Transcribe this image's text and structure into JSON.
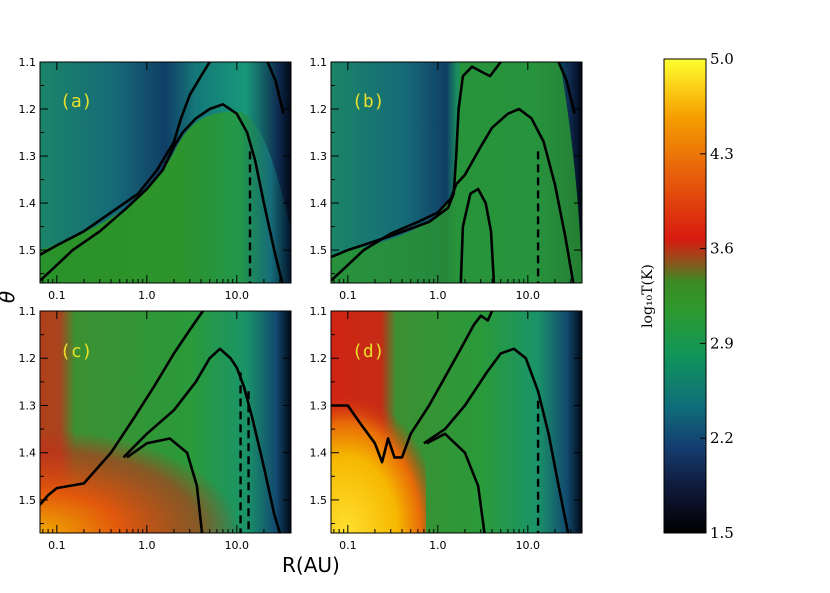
{
  "chart_data": {
    "type": "heatmap",
    "xlabel": "R(AU)",
    "ylabel": "θ",
    "x_scale": "log",
    "xlim": [
      0.065,
      40
    ],
    "ylim": [
      1.1,
      1.57
    ],
    "x_ticks": [
      "0.1",
      "1.0",
      "10.0"
    ],
    "y_ticks": [
      "1.1",
      "1.2",
      "1.3",
      "1.4",
      "1.5"
    ],
    "y_tick_values": [
      1.1,
      1.2,
      1.3,
      1.4,
      1.5
    ],
    "x_tick_values": [
      0.1,
      1.0,
      10.0
    ],
    "colorbar": {
      "title": "log₁₀T(K)",
      "ticks": [
        "5.0",
        "4.3",
        "3.6",
        "2.9",
        "2.2",
        "1.5"
      ],
      "range": [
        1.5,
        5.0
      ],
      "colormap": [
        "#000000",
        "#1a2a6a",
        "#0f6f7a",
        "#1b9a4e",
        "#2e9a2e",
        "#9c4a1c",
        "#d81a10",
        "#ee6a08",
        "#f8b200",
        "#ffff30"
      ]
    },
    "panels": [
      {
        "label": "(a)",
        "contours": [
          [
            [
              0.065,
              1.565
            ],
            [
              0.09,
              1.54
            ],
            [
              0.15,
              1.5
            ],
            [
              0.3,
              1.46
            ],
            [
              0.6,
              1.41
            ],
            [
              1.0,
              1.37
            ],
            [
              1.5,
              1.33
            ],
            [
              2.0,
              1.28
            ],
            [
              2.5,
              1.25
            ],
            [
              3.5,
              1.22
            ],
            [
              5.0,
              1.2
            ],
            [
              7.0,
              1.19
            ],
            [
              10.0,
              1.21
            ],
            [
              13.0,
              1.25
            ],
            [
              16.0,
              1.31
            ],
            [
              20.0,
              1.4
            ],
            [
              26.0,
              1.5
            ],
            [
              32.0,
              1.57
            ]
          ],
          [
            [
              0.065,
              1.51
            ],
            [
              0.1,
              1.49
            ],
            [
              0.2,
              1.46
            ],
            [
              0.4,
              1.42
            ],
            [
              0.8,
              1.38
            ],
            [
              1.3,
              1.33
            ],
            [
              2.0,
              1.27
            ],
            [
              2.4,
              1.22
            ],
            [
              3.0,
              1.17
            ],
            [
              4.0,
              1.13
            ],
            [
              5.0,
              1.1
            ]
          ],
          [
            [
              22.0,
              1.1
            ],
            [
              27.0,
              1.14
            ],
            [
              33.0,
              1.21
            ]
          ]
        ],
        "dashed": [
          [
            14.0,
            1.29
          ],
          [
            14.0,
            1.57
          ]
        ]
      },
      {
        "label": "(b)",
        "contours": [
          [
            [
              0.065,
              1.565
            ],
            [
              0.09,
              1.54
            ],
            [
              0.15,
              1.5
            ],
            [
              0.3,
              1.465
            ],
            [
              0.6,
              1.44
            ],
            [
              1.0,
              1.42
            ],
            [
              1.4,
              1.39
            ],
            [
              1.6,
              1.36
            ],
            [
              2.0,
              1.34
            ],
            [
              3.0,
              1.28
            ],
            [
              4.0,
              1.24
            ],
            [
              6.0,
              1.21
            ],
            [
              8.0,
              1.2
            ],
            [
              11.0,
              1.22
            ],
            [
              15.0,
              1.27
            ],
            [
              20.0,
              1.36
            ],
            [
              26.0,
              1.47
            ],
            [
              32.0,
              1.57
            ]
          ],
          [
            [
              0.065,
              1.515
            ],
            [
              0.1,
              1.5
            ],
            [
              0.3,
              1.47
            ],
            [
              0.8,
              1.44
            ],
            [
              1.3,
              1.41
            ],
            [
              1.5,
              1.38
            ],
            [
              1.6,
              1.3
            ],
            [
              1.7,
              1.2
            ],
            [
              1.9,
              1.13
            ],
            [
              2.4,
              1.11
            ],
            [
              3.0,
              1.12
            ],
            [
              3.8,
              1.13
            ],
            [
              5.0,
              1.1
            ]
          ],
          [
            [
              1.8,
              1.57
            ],
            [
              1.9,
              1.45
            ],
            [
              2.3,
              1.38
            ],
            [
              2.8,
              1.37
            ],
            [
              3.4,
              1.4
            ],
            [
              3.9,
              1.46
            ],
            [
              4.2,
              1.57
            ]
          ],
          [
            [
              22.0,
              1.1
            ],
            [
              27.0,
              1.14
            ],
            [
              33.0,
              1.21
            ]
          ]
        ],
        "dashed": [
          [
            13.0,
            1.29
          ],
          [
            13.0,
            1.57
          ]
        ]
      },
      {
        "label": "(c)",
        "contours": [
          [
            [
              0.065,
              1.51
            ],
            [
              0.08,
              1.49
            ],
            [
              0.1,
              1.475
            ],
            [
              0.2,
              1.465
            ],
            [
              0.4,
              1.4
            ],
            [
              0.7,
              1.33
            ],
            [
              1.2,
              1.26
            ],
            [
              2.0,
              1.19
            ],
            [
              3.0,
              1.14
            ],
            [
              4.2,
              1.1
            ]
          ],
          [
            [
              0.55,
              1.41
            ],
            [
              1.0,
              1.36
            ],
            [
              2.0,
              1.31
            ],
            [
              3.5,
              1.25
            ],
            [
              5.0,
              1.2
            ],
            [
              6.5,
              1.18
            ],
            [
              8.5,
              1.2
            ],
            [
              10.0,
              1.22
            ],
            [
              12.0,
              1.26
            ],
            [
              15.0,
              1.33
            ],
            [
              20.0,
              1.43
            ],
            [
              26.0,
              1.53
            ],
            [
              30.0,
              1.57
            ]
          ],
          [
            [
              0.6,
              1.41
            ],
            [
              1.0,
              1.38
            ],
            [
              1.8,
              1.37
            ],
            [
              2.8,
              1.4
            ],
            [
              3.6,
              1.47
            ],
            [
              4.1,
              1.57
            ]
          ]
        ],
        "dashed": [
          [
            11.0,
            1.23
          ],
          [
            11.0,
            1.57
          ],
          [
            13.5,
            1.27
          ],
          [
            13.5,
            1.57
          ]
        ]
      },
      {
        "label": "(d)",
        "contours": [
          [
            [
              0.065,
              1.3
            ],
            [
              0.1,
              1.3
            ],
            [
              0.14,
              1.34
            ],
            [
              0.2,
              1.38
            ],
            [
              0.24,
              1.42
            ],
            [
              0.28,
              1.37
            ],
            [
              0.33,
              1.41
            ],
            [
              0.4,
              1.41
            ],
            [
              0.5,
              1.36
            ],
            [
              0.8,
              1.3
            ],
            [
              1.2,
              1.24
            ],
            [
              1.8,
              1.18
            ],
            [
              2.5,
              1.13
            ],
            [
              3.0,
              1.11
            ],
            [
              3.6,
              1.12
            ],
            [
              4.0,
              1.1
            ]
          ],
          [
            [
              0.7,
              1.38
            ],
            [
              1.2,
              1.35
            ],
            [
              2.0,
              1.3
            ],
            [
              3.5,
              1.23
            ],
            [
              5.0,
              1.19
            ],
            [
              7.0,
              1.18
            ],
            [
              9.5,
              1.2
            ],
            [
              13.0,
              1.27
            ],
            [
              17.0,
              1.36
            ],
            [
              22.0,
              1.47
            ],
            [
              28.0,
              1.57
            ]
          ],
          [
            [
              0.75,
              1.38
            ],
            [
              1.2,
              1.36
            ],
            [
              2.0,
              1.4
            ],
            [
              2.8,
              1.47
            ],
            [
              3.3,
              1.57
            ]
          ]
        ],
        "dashed": [
          [
            13.0,
            1.29
          ],
          [
            13.0,
            1.57
          ]
        ]
      }
    ]
  },
  "colors": {
    "panel_label": "#e8e02a",
    "contour": "#000000"
  }
}
